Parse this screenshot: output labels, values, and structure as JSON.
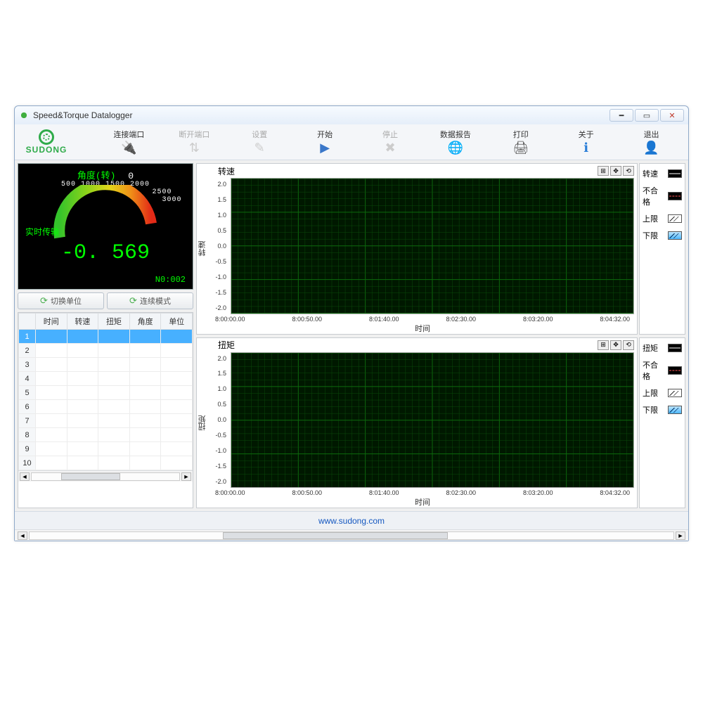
{
  "window": {
    "title": "Speed&Torque Datalogger"
  },
  "logo_text": "SUDONG",
  "toolbar": [
    {
      "label": "连接端口",
      "icon": "🔌",
      "color": "#2fab4a",
      "disabled": false
    },
    {
      "label": "断开端口",
      "icon": "⇅",
      "color": "#cc4040",
      "disabled": true
    },
    {
      "label": "设置",
      "icon": "✎",
      "color": "#b08030",
      "disabled": true
    },
    {
      "label": "开始",
      "icon": "▶",
      "color": "#3a77c9",
      "disabled": false
    },
    {
      "label": "停止",
      "icon": "✖",
      "color": "#c94a3a",
      "disabled": true
    },
    {
      "label": "数据报告",
      "icon": "🌐",
      "color": "#3a9a4a",
      "disabled": false
    },
    {
      "label": "打印",
      "icon": "🖨",
      "color": "#555",
      "disabled": false
    },
    {
      "label": "关于",
      "icon": "ℹ",
      "color": "#2a7ed8",
      "disabled": false
    },
    {
      "label": "退出",
      "icon": "👤",
      "color": "#e09a30",
      "disabled": false
    }
  ],
  "gauge": {
    "title": "角度(转)",
    "zero": "0",
    "ticks": [
      "500",
      "1000",
      "1500",
      "2000",
      "2500",
      "3000"
    ],
    "realtime_label": "实时传输",
    "value": "-0. 569",
    "serial": "N0:002",
    "arc_gradient": [
      "#34c32b",
      "#8cd31a",
      "#e3d41a",
      "#ef8f18",
      "#e32a17"
    ]
  },
  "left_buttons": {
    "switch_unit": "切换单位",
    "continuous_mode": "连续模式"
  },
  "table": {
    "columns": [
      "时间",
      "转速",
      "扭矩",
      "角度",
      "单位"
    ],
    "rowcount": 10,
    "selected_row": 1
  },
  "charts": {
    "ylim": [
      -2.0,
      2.0
    ],
    "ytick_step": 0.5,
    "yticks": [
      "2.0",
      "1.5",
      "1.0",
      "0.5",
      "0.0",
      "-0.5",
      "-1.0",
      "-1.5",
      "-2.0"
    ],
    "xticks": [
      "8:00:00.00",
      "8:00:50.00",
      "8:01:40.00",
      "8:02:30.00",
      "8:03:20.00",
      "8:04:32.00"
    ],
    "xlabel": "时间",
    "bg_color": "#001a00",
    "grid_color": "#0a4d0a",
    "major_grid_color": "#0d6a0d",
    "speed": {
      "title": "转速",
      "ylabel": "转速",
      "legend": [
        {
          "label": "转速",
          "type": "line"
        },
        {
          "label": "不合格",
          "type": "redline"
        },
        {
          "label": "上限",
          "type": "white"
        },
        {
          "label": "下限",
          "type": "blue"
        }
      ]
    },
    "torque": {
      "title": "扭矩",
      "ylabel": "扭矩",
      "legend": [
        {
          "label": "扭矩",
          "type": "line"
        },
        {
          "label": "不合格",
          "type": "redline"
        },
        {
          "label": "上限",
          "type": "white"
        },
        {
          "label": "下限",
          "type": "blue"
        }
      ]
    }
  },
  "footer_url": "www.sudong.com"
}
